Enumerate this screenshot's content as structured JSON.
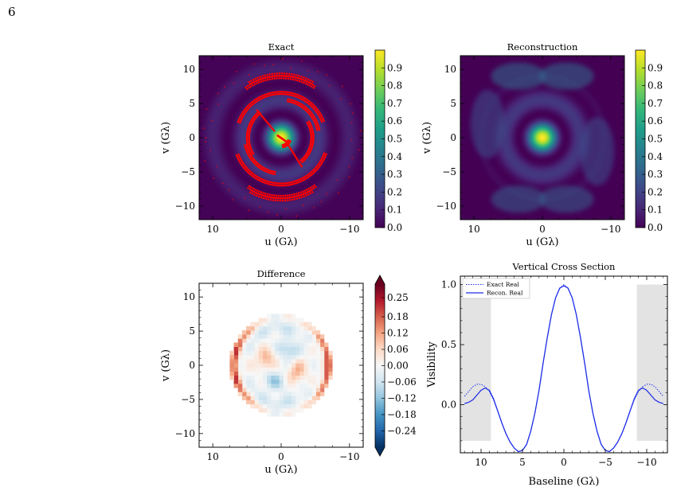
{
  "page": {
    "number": "6"
  },
  "colors": {
    "viridis": [
      "#440154",
      "#482878",
      "#3e4989",
      "#31688e",
      "#26828e",
      "#1f9e89",
      "#35b779",
      "#6ece58",
      "#b5de2b",
      "#fde725"
    ],
    "diverging": [
      "#053061",
      "#2166ac",
      "#4393c3",
      "#92c5de",
      "#d1e5f0",
      "#f7f7f7",
      "#fddbc7",
      "#f4a582",
      "#d6604d",
      "#b2182b",
      "#67001f"
    ],
    "uv_points": "#ff0000",
    "line": "#1f2fe8",
    "shade": "#e3e3e3"
  },
  "chart_data": [
    {
      "id": "exact",
      "type": "heatmap",
      "title": "Exact",
      "xlabel": "u (Gλ)",
      "ylabel": "v (Gλ)",
      "xlim": [
        12,
        -12
      ],
      "ylim": [
        -12,
        12
      ],
      "xticks": [
        "10",
        "0",
        "−10"
      ],
      "yticks": [
        "10",
        "5",
        "0",
        "−5",
        "−10"
      ],
      "colorbar": {
        "min": 0.0,
        "max": 1.0,
        "ticks": [
          "0.0",
          "0.1",
          "0.2",
          "0.3",
          "0.4",
          "0.5",
          "0.6",
          "0.7",
          "0.8",
          "0.9"
        ]
      },
      "radial_profile": {
        "model": "bessel_j0_squared",
        "scale": 0.7
      },
      "overlay": {
        "type": "scatter",
        "name": "uv coverage",
        "tracks": [
          {
            "r": 8.8,
            "theta_deg": [
              55,
              125
            ]
          },
          {
            "r": 9.2,
            "theta_deg": [
              60,
              120
            ]
          },
          {
            "r": 8.6,
            "theta_deg": [
              235,
              305
            ]
          },
          {
            "r": 9.0,
            "theta_deg": [
              240,
              300
            ]
          },
          {
            "r": 6.5,
            "theta_deg": [
              20,
              160
            ]
          },
          {
            "r": 6.8,
            "theta_deg": [
              200,
              340
            ]
          },
          {
            "r": 4.5,
            "theta_deg": [
              150,
              230
            ]
          },
          {
            "r": 4.8,
            "theta_deg": [
              -30,
              50
            ]
          },
          {
            "r": 1.2,
            "theta_deg": [
              200,
              260
            ]
          },
          {
            "r": 5.5,
            "theta_deg": [
              100,
              170
            ]
          },
          {
            "r": 5.2,
            "theta_deg": [
              280,
              350
            ]
          }
        ],
        "segments": [
          {
            "from": [
              1,
              1
            ],
            "to": [
              3.5,
              4
            ]
          },
          {
            "from": [
              -1,
              -1
            ],
            "to": [
              -3,
              -4.2
            ]
          },
          {
            "from": [
              0.5,
              0.3
            ],
            "to": [
              -0.8,
              -0.6
            ]
          }
        ],
        "outer_ring_radius": 11
      }
    },
    {
      "id": "reconstruction",
      "type": "heatmap",
      "title": "Reconstruction",
      "xlabel": "u (Gλ)",
      "ylabel": "v (Gλ)",
      "xlim": [
        12,
        -12
      ],
      "ylim": [
        -12,
        12
      ],
      "xticks": [
        "10",
        "0",
        "−10"
      ],
      "yticks": [
        "10",
        "5",
        "0",
        "−5",
        "−10"
      ],
      "colorbar": {
        "min": 0.0,
        "max": 1.0,
        "ticks": [
          "0.0",
          "0.1",
          "0.2",
          "0.3",
          "0.4",
          "0.5",
          "0.6",
          "0.7",
          "0.8",
          "0.9"
        ]
      },
      "radial_profile": {
        "model": "bessel_j0_squared_clipped",
        "scale": 0.7,
        "support_radius": 9.5
      }
    },
    {
      "id": "difference",
      "type": "heatmap",
      "title": "Difference",
      "xlabel": "u (Gλ)",
      "ylabel": "v (Gλ)",
      "xlim": [
        12,
        -12
      ],
      "ylim": [
        -12,
        12
      ],
      "xticks": [
        "10",
        "0",
        "−10"
      ],
      "yticks": [
        "10",
        "5",
        "0",
        "−5",
        "−10"
      ],
      "colorbar": {
        "min": -0.3,
        "max": 0.3,
        "ticks": [
          "0.25",
          "0.18",
          "0.12",
          "0.06",
          "0.00",
          "−0.06",
          "−0.12",
          "−0.18",
          "−0.24"
        ]
      },
      "support_radius": 7.5
    },
    {
      "id": "cross-section",
      "type": "line",
      "title": "Vertical Cross Section",
      "xlabel": "Baseline (Gλ)",
      "ylabel": "Visibility",
      "xlim": [
        12.5,
        -12.5
      ],
      "ylim": [
        -0.4,
        1.07
      ],
      "xticks": [
        "10",
        "5",
        "0",
        "−5",
        "−10"
      ],
      "yticks": [
        "0.0",
        "0.5",
        "1.0"
      ],
      "legend": "top-left",
      "shaded_regions": [
        [
          12.5,
          8.8
        ],
        [
          -8.8,
          -12.5
        ]
      ],
      "series": [
        {
          "name": "Exact Real",
          "style": "dotted",
          "x": [
            12,
            11.5,
            11,
            10.5,
            10,
            9.5,
            9,
            8.5,
            8,
            7.5,
            7,
            6.5,
            6,
            5.5,
            5,
            4.5,
            4,
            3.5,
            3,
            2.5,
            2,
            1.5,
            1,
            0.5,
            0,
            -0.5,
            -1,
            -1.5,
            -2,
            -2.5,
            -3,
            -3.5,
            -4,
            -4.5,
            -5,
            -5.5,
            -6,
            -6.5,
            -7,
            -7.5,
            -8,
            -8.5,
            -9,
            -9.5,
            -10,
            -10.5,
            -11,
            -11.5,
            -12
          ],
          "y": [
            0.07,
            0.11,
            0.15,
            0.17,
            0.17,
            0.15,
            0.11,
            0.04,
            -0.05,
            -0.15,
            -0.24,
            -0.31,
            -0.36,
            -0.39,
            -0.38,
            -0.33,
            -0.22,
            -0.07,
            0.12,
            0.35,
            0.56,
            0.75,
            0.89,
            0.97,
            1.0,
            0.97,
            0.89,
            0.75,
            0.56,
            0.35,
            0.12,
            -0.07,
            -0.22,
            -0.33,
            -0.38,
            -0.39,
            -0.36,
            -0.31,
            -0.24,
            -0.15,
            -0.05,
            0.04,
            0.11,
            0.15,
            0.17,
            0.17,
            0.15,
            0.11,
            0.07
          ]
        },
        {
          "name": "Recon. Real",
          "style": "solid",
          "x": [
            12,
            11.5,
            11,
            10.5,
            10,
            9.5,
            9,
            8.5,
            8,
            7.5,
            7,
            6.5,
            6,
            5.5,
            5,
            4.5,
            4,
            3.5,
            3,
            2.5,
            2,
            1.5,
            1,
            0.5,
            0,
            -0.5,
            -1,
            -1.5,
            -2,
            -2.5,
            -3,
            -3.5,
            -4,
            -4.5,
            -5,
            -5.5,
            -6,
            -6.5,
            -7,
            -7.5,
            -8,
            -8.5,
            -9,
            -9.5,
            -10,
            -10.5,
            -11,
            -11.5,
            -12
          ],
          "y": [
            0.01,
            0.02,
            0.04,
            0.08,
            0.12,
            0.14,
            0.12,
            0.05,
            -0.05,
            -0.15,
            -0.24,
            -0.31,
            -0.36,
            -0.39,
            -0.38,
            -0.33,
            -0.22,
            -0.07,
            0.12,
            0.35,
            0.56,
            0.75,
            0.89,
            0.97,
            0.99,
            0.97,
            0.89,
            0.75,
            0.56,
            0.35,
            0.12,
            -0.07,
            -0.22,
            -0.33,
            -0.38,
            -0.39,
            -0.36,
            -0.31,
            -0.24,
            -0.15,
            -0.05,
            0.05,
            0.12,
            0.14,
            0.12,
            0.08,
            0.04,
            0.02,
            0.01
          ]
        }
      ]
    }
  ]
}
